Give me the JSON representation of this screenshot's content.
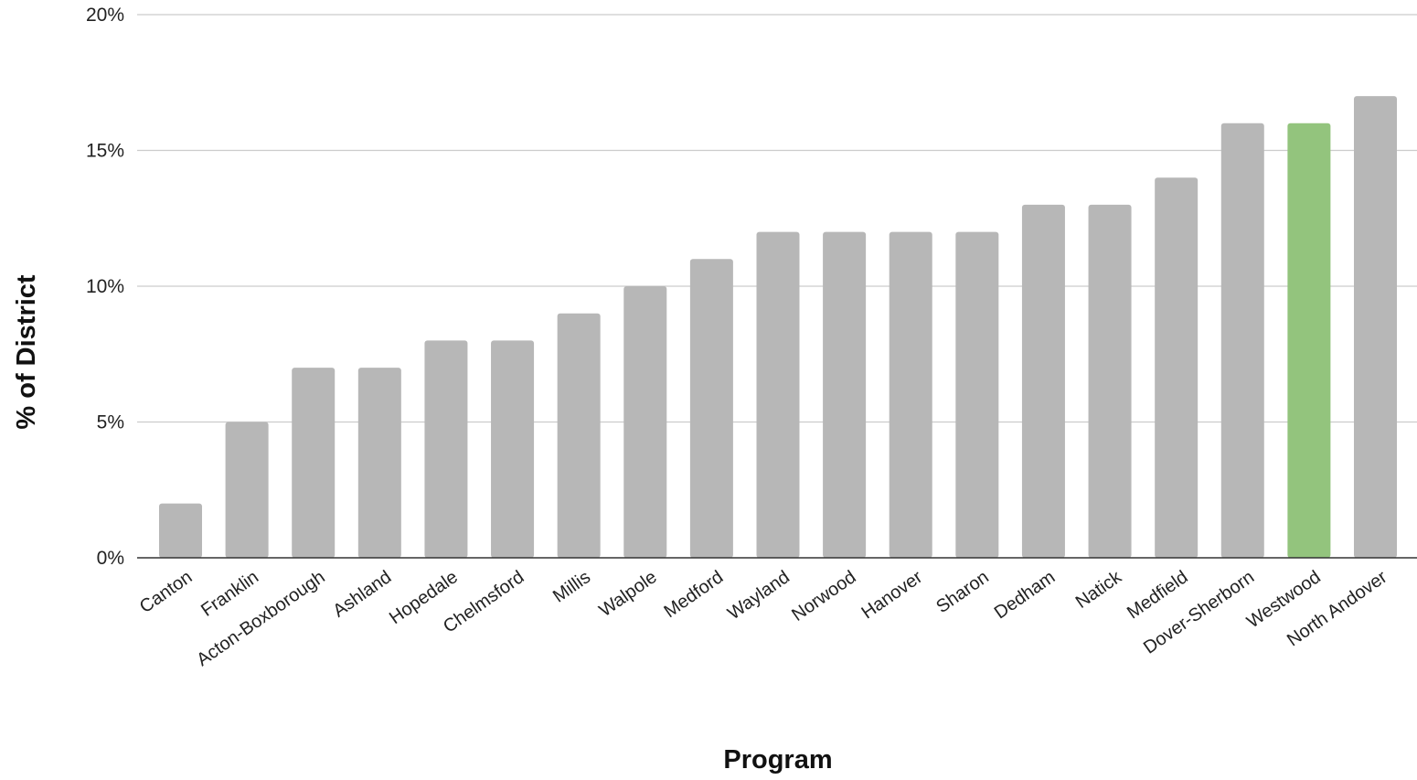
{
  "chart_data": {
    "type": "bar",
    "title": "",
    "xlabel": "Program",
    "ylabel": "% of District",
    "ylim": [
      0,
      20
    ],
    "y_ticks": [
      "0%",
      "5%",
      "10%",
      "15%",
      "20%"
    ],
    "y_tick_values": [
      0,
      5,
      10,
      15,
      20
    ],
    "grid": true,
    "legend": "none",
    "categories": [
      "Canton",
      "Franklin",
      "Acton-Boxborough",
      "Ashland",
      "Hopedale",
      "Chelmsford",
      "Millis",
      "Walpole",
      "Medford",
      "Wayland",
      "Norwood",
      "Hanover",
      "Sharon",
      "Dedham",
      "Natick",
      "Medfield",
      "Dover-Sherborn",
      "Westwood",
      "North Andover"
    ],
    "values": [
      2,
      5,
      7,
      7,
      8,
      8,
      9,
      10,
      11,
      12,
      12,
      12,
      12,
      13,
      13,
      14,
      16,
      16,
      17
    ],
    "highlight_category": "Westwood",
    "colors": {
      "bar": "#b7b7b7",
      "highlight": "#93c47d",
      "grid": "#cccccc",
      "axis": "#333333"
    }
  }
}
